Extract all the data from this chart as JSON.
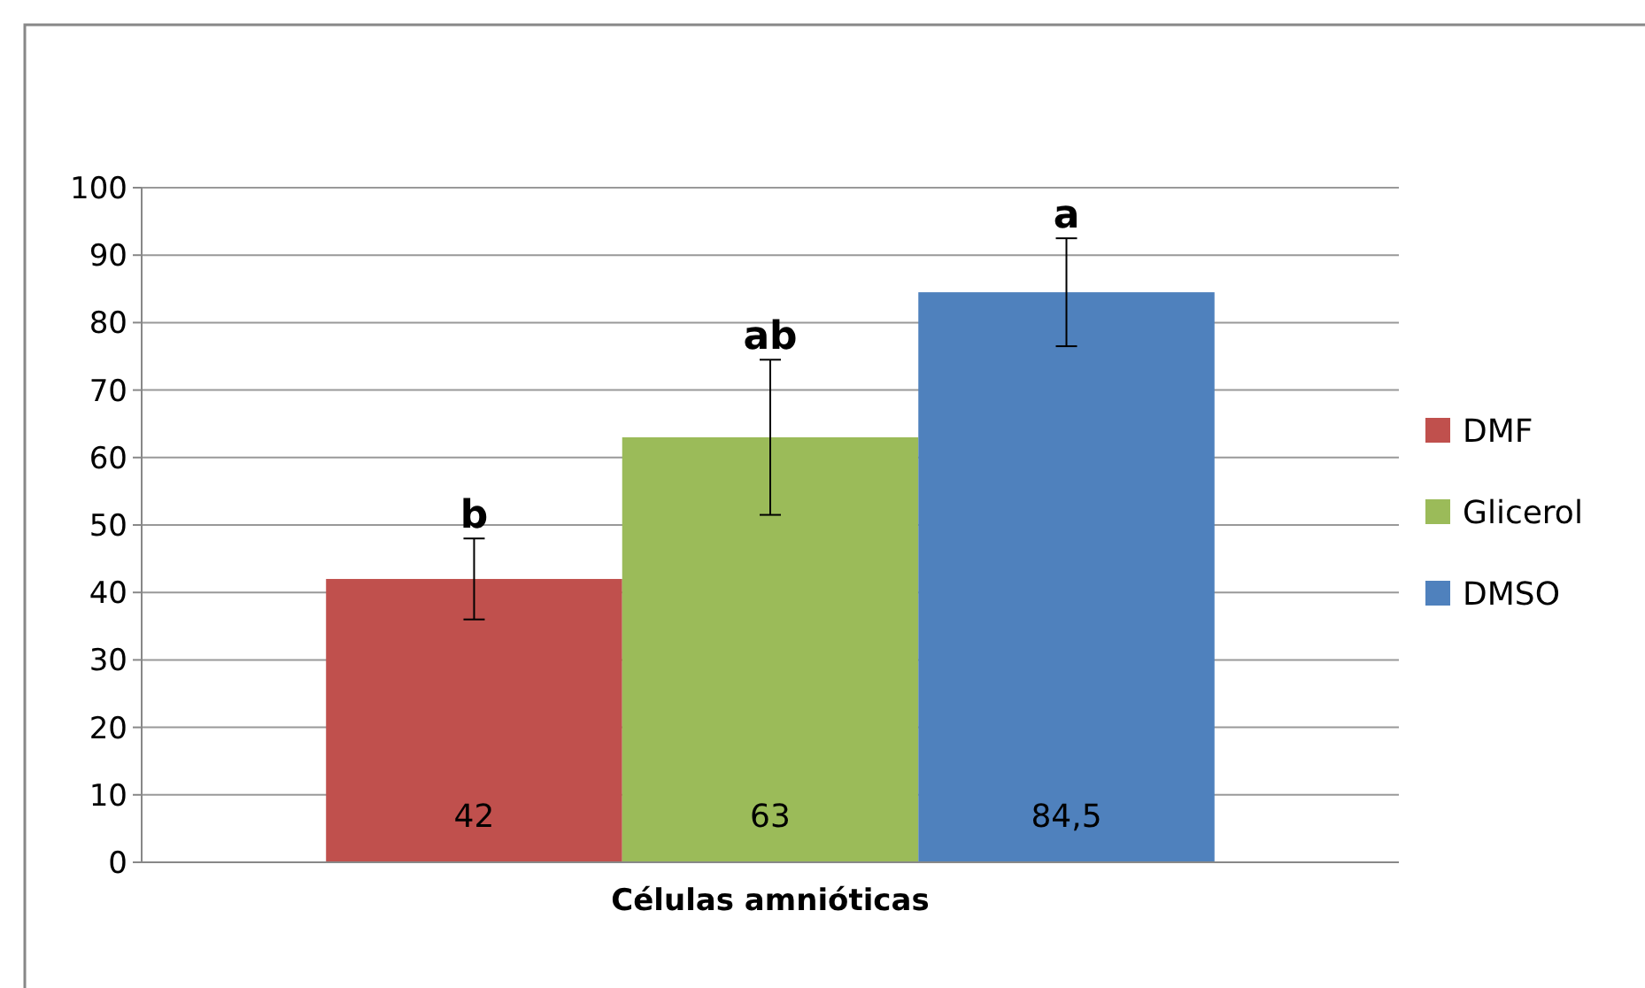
{
  "chart_data": {
    "type": "bar",
    "categories": [
      "Células amnióticas"
    ],
    "series": [
      {
        "name": "DMF",
        "color": "#c0504d",
        "values": [
          42
        ],
        "errors": [
          6
        ],
        "value_labels": [
          "42"
        ]
      },
      {
        "name": "Glicerol",
        "color": "#9bbb59",
        "values": [
          63
        ],
        "errors": [
          11.5
        ],
        "value_labels": [
          "63"
        ]
      },
      {
        "name": "DMSO",
        "color": "#4f81bd",
        "values": [
          84.5
        ],
        "errors": [
          8
        ],
        "value_labels": [
          "84,5"
        ]
      }
    ],
    "annotations": [
      "b",
      "ab",
      "a"
    ],
    "ylim": [
      0,
      100
    ],
    "yticks": [
      0,
      10,
      20,
      30,
      40,
      50,
      60,
      70,
      80,
      90,
      100
    ],
    "grid": "y",
    "legend": "right"
  }
}
